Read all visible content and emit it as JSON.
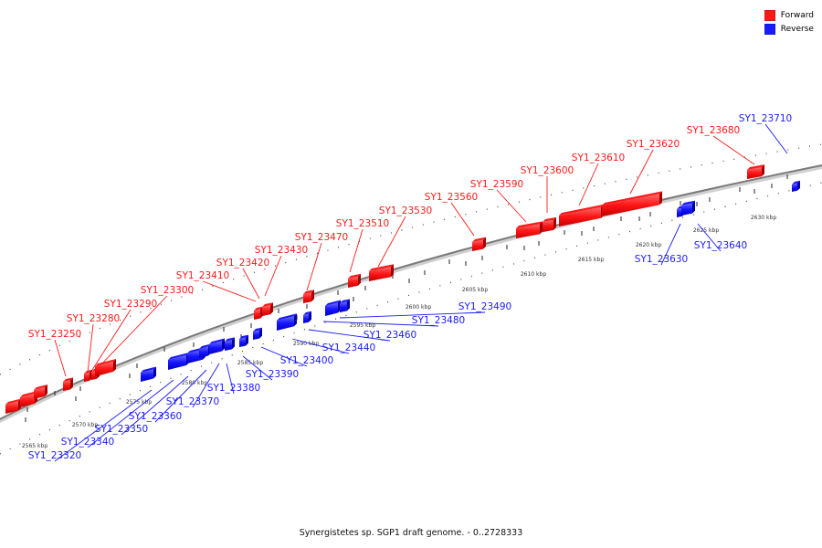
{
  "colors": {
    "forward": "#ff1a1a",
    "reverse": "#1a1aff",
    "backbone": "#808080"
  },
  "legend": [
    {
      "label": "Forward",
      "color": "#ff1a1a"
    },
    {
      "label": "Reverse",
      "color": "#1a1aff"
    }
  ],
  "caption": "Synergistetes sp. SGP1 draft genome. - 0..2728333",
  "scale": {
    "unit": "kbp",
    "ticks": [
      2565,
      2570,
      2575,
      2580,
      2585,
      2590,
      2595,
      2600,
      2605,
      2610,
      2615,
      2620,
      2625,
      2630
    ]
  },
  "forward_genes": [
    "SY1_23250",
    "SY1_23280",
    "SY1_23290",
    "SY1_23300",
    "SY1_23410",
    "SY1_23420",
    "SY1_23430",
    "SY1_23470",
    "SY1_23510",
    "SY1_23530",
    "SY1_23560",
    "SY1_23590",
    "SY1_23600",
    "SY1_23610",
    "SY1_23620",
    "SY1_23680"
  ],
  "reverse_genes": [
    "SY1_23710",
    "SY1_23640",
    "SY1_23630",
    "SY1_23490",
    "SY1_23480",
    "SY1_23460",
    "SY1_23440",
    "SY1_23400",
    "SY1_23390",
    "SY1_23380",
    "SY1_23370",
    "SY1_23360",
    "SY1_23350",
    "SY1_23340",
    "SY1_23320"
  ]
}
